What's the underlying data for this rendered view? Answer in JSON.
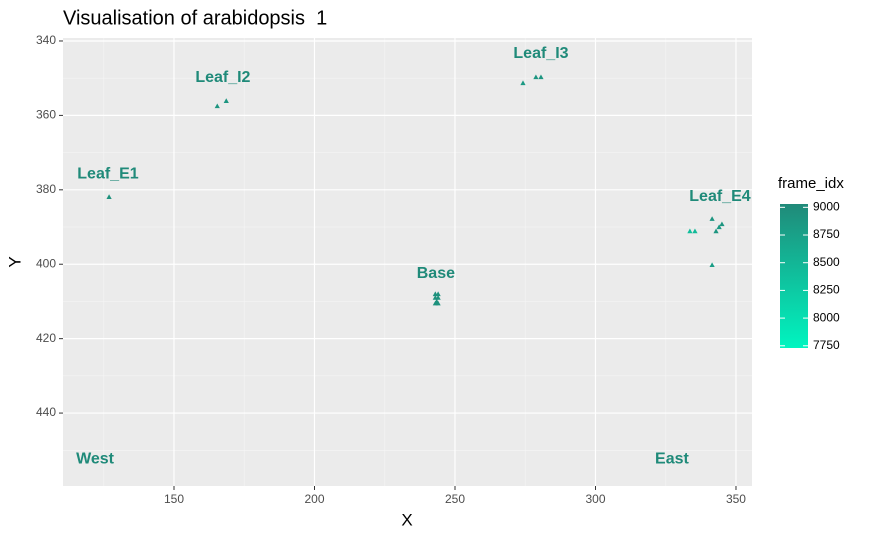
{
  "chart_data": {
    "type": "scatter",
    "title": "Visualisation of arabidopsis  1",
    "x_label": "X",
    "y_label": "Y",
    "xlim": [
      110.5,
      355.7
    ],
    "ylim": [
      459.6,
      339.2
    ],
    "xticks": [
      150,
      200,
      250,
      300,
      350
    ],
    "yticks": [
      340,
      360,
      380,
      400,
      420,
      440
    ],
    "xminor": [
      125,
      175,
      225,
      275,
      325
    ],
    "yminor": [
      350,
      370,
      390,
      410,
      430,
      450
    ],
    "grid": true,
    "series": [
      {
        "name": "frame_idx",
        "x": [
          126.9,
          165.4,
          168.6,
          274.2,
          278.8,
          280.6,
          333.6,
          335.4,
          341.5,
          342.9,
          344.0,
          345.0,
          341.5,
          243.0,
          244.0,
          243.0,
          244.0,
          243.5,
          243.0,
          244.0
        ],
        "y": [
          381.9,
          357.5,
          356.1,
          351.3,
          349.7,
          349.7,
          391.1,
          391.1,
          387.8,
          391.1,
          390.0,
          389.2,
          400.2,
          408.0,
          408.0,
          409.0,
          409.0,
          410.0,
          410.5,
          410.5
        ],
        "values": [
          8950,
          8900,
          8900,
          8850,
          8900,
          8900,
          8400,
          8450,
          8900,
          8900,
          8850,
          8900,
          8800,
          8950,
          8950,
          8950,
          8950,
          8950,
          8950,
          8950
        ]
      }
    ],
    "color_low": "#00f5c0",
    "color_high": "#208a79",
    "colorbar_title": "frame_idx",
    "colorbar_lim": [
      7730,
      9030
    ],
    "colorbar_ticks": [
      7750,
      8000,
      8250,
      8500,
      8750,
      9000
    ],
    "annotation_color": "#1f8a79",
    "annotations": [
      {
        "text": "Leaf_E1",
        "x": 126.5,
        "y": 375.8
      },
      {
        "text": "Leaf_I2",
        "x": 167.4,
        "y": 349.9
      },
      {
        "text": "Leaf_I3",
        "x": 280.6,
        "y": 343.5
      },
      {
        "text": "Leaf_E4",
        "x": 344.3,
        "y": 381.9
      },
      {
        "text": "Base",
        "x": 243.2,
        "y": 402.6
      },
      {
        "text": "West",
        "x": 121.9,
        "y": 452.4
      },
      {
        "text": "East",
        "x": 327.2,
        "y": 452.4
      }
    ]
  }
}
